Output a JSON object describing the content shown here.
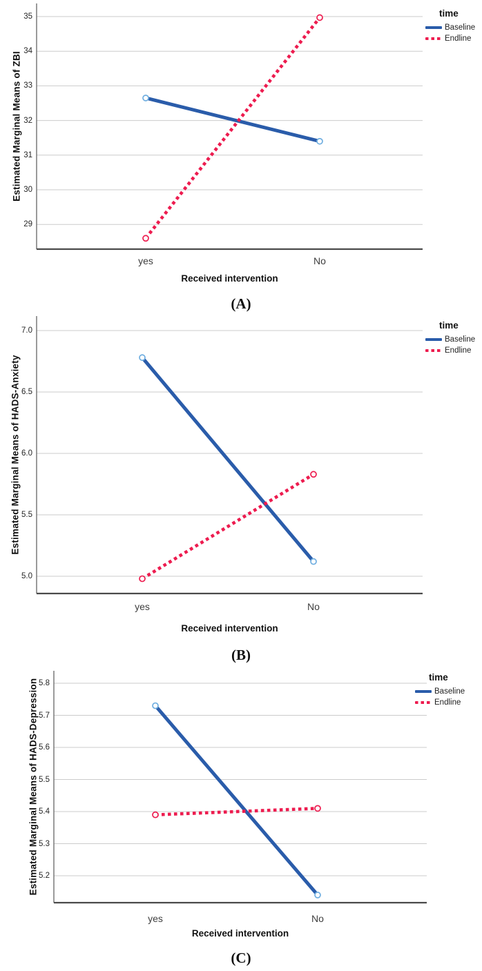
{
  "page": {
    "title": "Estimated marginal means interaction plots",
    "background": "#ffffff"
  },
  "colors": {
    "baseline": "#2A5CAA",
    "baseline_marker": "#6FAEE0",
    "endline": "#ED1C4F",
    "endline_marker": "#ED1C4F",
    "gridline": "#CBCBCB",
    "y_axis_line": "#707070",
    "x_axis_line": "#4A4A4A",
    "text": "#111111"
  },
  "chart_data": [
    {
      "type": "line",
      "panel_label": "(A)",
      "title": "",
      "ylabel": "Estimated Marginal Means of ZBI",
      "xlabel": "Received intervention",
      "legend_title": "time",
      "legend_position": "top-right",
      "grid": true,
      "categories": [
        "yes",
        "No"
      ],
      "ytick_labels": [
        "35",
        "34",
        "33",
        "32",
        "31",
        "30",
        "29"
      ],
      "ylim": [
        28.3,
        35.4
      ],
      "series": [
        {
          "name": "Baseline",
          "style": "solid",
          "color": "#2A5CAA",
          "marker_color": "#6FAEE0",
          "values": [
            32.65,
            31.4
          ]
        },
        {
          "name": "Endline",
          "style": "dotted",
          "color": "#ED1C4F",
          "marker_color": "#ED1C4F",
          "values": [
            28.6,
            34.97
          ]
        }
      ]
    },
    {
      "type": "line",
      "panel_label": "(B)",
      "title": "",
      "ylabel": "Estimated Marginal Means of HADS-Anxiety",
      "xlabel": "Received intervention",
      "legend_title": "time",
      "legend_position": "top-right",
      "grid": true,
      "categories": [
        "yes",
        "No"
      ],
      "ytick_labels": [
        "7.0",
        "6.5",
        "6.0",
        "5.5",
        "5.0"
      ],
      "ylim": [
        4.86,
        7.12
      ],
      "series": [
        {
          "name": "Baseline",
          "style": "solid",
          "color": "#2A5CAA",
          "marker_color": "#6FAEE0",
          "values": [
            6.78,
            5.12
          ]
        },
        {
          "name": "Endline",
          "style": "dotted",
          "color": "#ED1C4F",
          "marker_color": "#ED1C4F",
          "values": [
            4.98,
            5.83
          ]
        }
      ]
    },
    {
      "type": "line",
      "panel_label": "(C)",
      "title": "",
      "ylabel": "Estimated Marginal Means of HADS-Depression",
      "xlabel": "Received intervention",
      "legend_title": "time",
      "legend_position": "top-right",
      "grid": true,
      "categories": [
        "yes",
        "No"
      ],
      "ytick_labels": [
        "5.8",
        "5.7",
        "5.6",
        "5.5",
        "5.4",
        "5.3",
        "5.2"
      ],
      "ylim": [
        5.12,
        5.84
      ],
      "series": [
        {
          "name": "Baseline",
          "style": "solid",
          "color": "#2A5CAA",
          "marker_color": "#6FAEE0",
          "values": [
            5.73,
            5.14
          ]
        },
        {
          "name": "Endline",
          "style": "dotted",
          "color": "#ED1C4F",
          "marker_color": "#ED1C4F",
          "values": [
            5.39,
            5.41
          ]
        }
      ]
    }
  ]
}
